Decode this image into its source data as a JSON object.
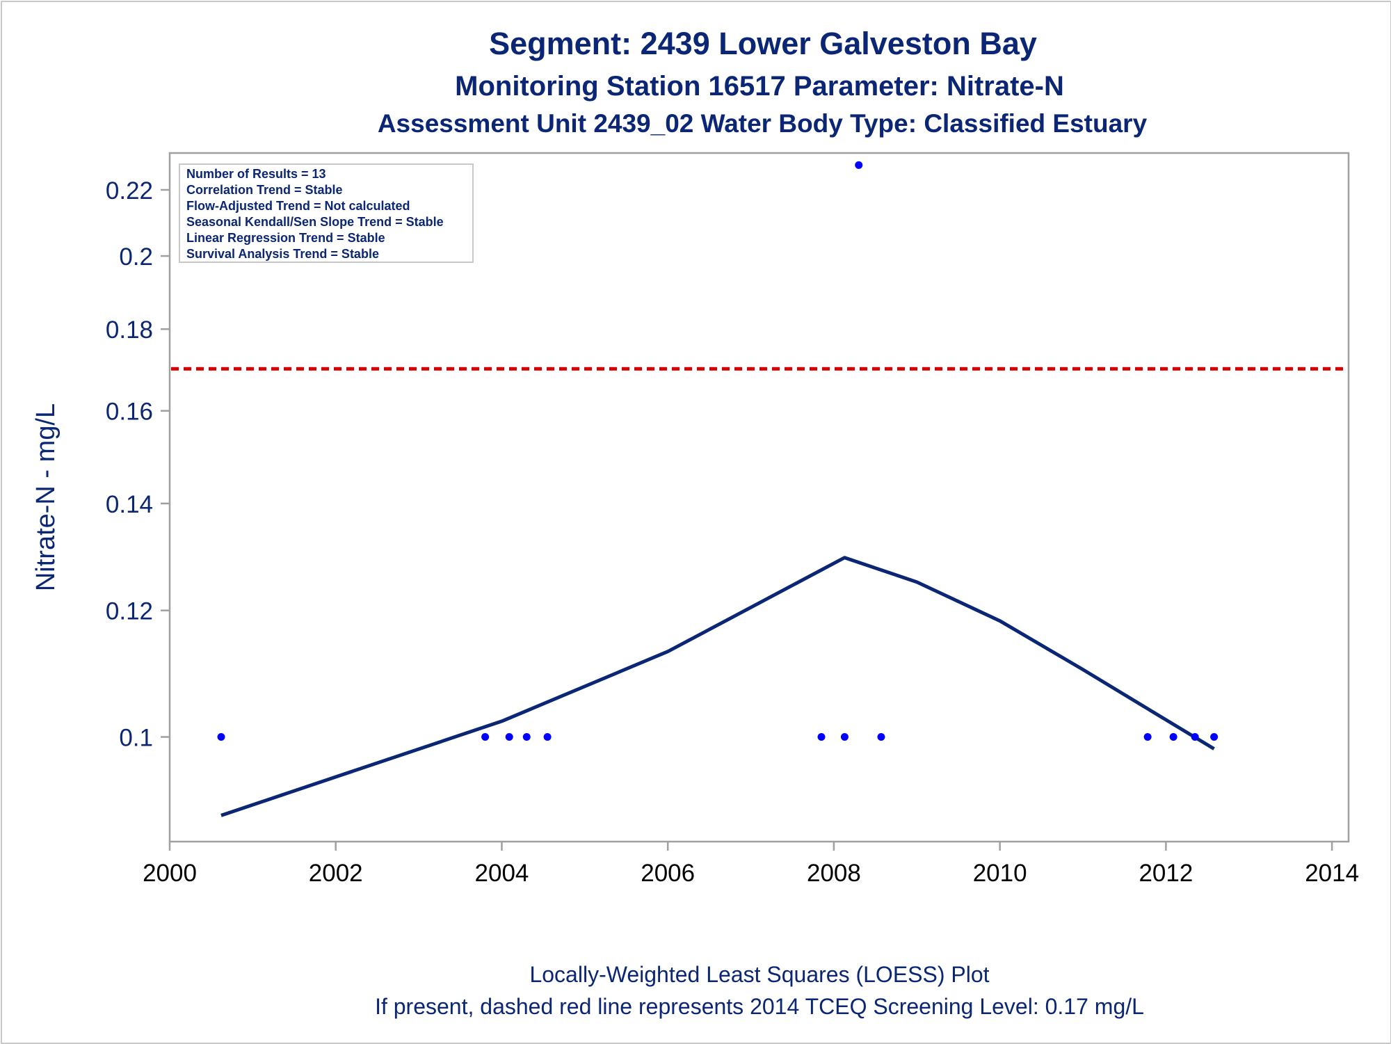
{
  "chart_data": {
    "type": "scatter",
    "title": "Segment: 2439  Lower Galveston Bay",
    "subtitle_1": "Monitoring Station 16517 Parameter: Nitrate-N",
    "subtitle_2": "Assessment Unit 2439_02   Water Body Type: Classified Estuary",
    "ylabel": "Nitrate-N - mg/L",
    "xlabel": "",
    "y_scale": "log",
    "ylim": [
      0.086,
      0.232
    ],
    "xlim": [
      2000,
      2014.2
    ],
    "x_ticks": [
      2000,
      2002,
      2004,
      2006,
      2008,
      2010,
      2012,
      2014
    ],
    "x_tick_labels": [
      "2000",
      "2002",
      "2004",
      "2006",
      "2008",
      "2010",
      "2012",
      "2014"
    ],
    "y_ticks": [
      0.1,
      0.12,
      0.14,
      0.16,
      0.18,
      0.2,
      0.22
    ],
    "y_tick_labels": [
      "0.1",
      "0.12",
      "0.14",
      "0.16",
      "0.18",
      "0.2",
      "0.22"
    ],
    "grid": false,
    "points": [
      {
        "x": 2000.62,
        "y": 0.1
      },
      {
        "x": 2003.8,
        "y": 0.1
      },
      {
        "x": 2004.09,
        "y": 0.1
      },
      {
        "x": 2004.3,
        "y": 0.1
      },
      {
        "x": 2004.55,
        "y": 0.1
      },
      {
        "x": 2007.85,
        "y": 0.1
      },
      {
        "x": 2008.13,
        "y": 0.1
      },
      {
        "x": 2008.3,
        "y": 0.228
      },
      {
        "x": 2008.57,
        "y": 0.1
      },
      {
        "x": 2011.78,
        "y": 0.1
      },
      {
        "x": 2012.09,
        "y": 0.1
      },
      {
        "x": 2012.35,
        "y": 0.1
      },
      {
        "x": 2012.58,
        "y": 0.1
      }
    ],
    "loess": [
      {
        "x": 2000.62,
        "y": 0.0893
      },
      {
        "x": 2002.0,
        "y": 0.0944
      },
      {
        "x": 2004.0,
        "y": 0.1023
      },
      {
        "x": 2006.0,
        "y": 0.1131
      },
      {
        "x": 2008.13,
        "y": 0.1295
      },
      {
        "x": 2009.0,
        "y": 0.125
      },
      {
        "x": 2010.0,
        "y": 0.1182
      },
      {
        "x": 2011.0,
        "y": 0.1102
      },
      {
        "x": 2012.0,
        "y": 0.1025
      },
      {
        "x": 2012.58,
        "y": 0.0983
      }
    ],
    "reference_line": {
      "y": 0.17,
      "style": "dashed",
      "color": "#d40000"
    },
    "colors": {
      "text": "#0a2674",
      "points": "#0000ff",
      "loess": "#0a2674",
      "axis": "#a0a0a0",
      "tick_label": "#0a2674"
    },
    "legend_box": {
      "lines": [
        "Number of Results = 13",
        "Correlation Trend = Stable",
        "Flow-Adjusted Trend = Not calculated",
        "Seasonal Kendall/Sen Slope Trend = Stable",
        "Linear Regression Trend = Stable",
        "Survival Analysis Trend = Stable"
      ],
      "placement": "top-left"
    },
    "footnotes": [
      "Locally-Weighted Least Squares (LOESS) Plot",
      "If present, dashed red line represents 2014 TCEQ Screening Level: 0.17 mg/L"
    ]
  }
}
